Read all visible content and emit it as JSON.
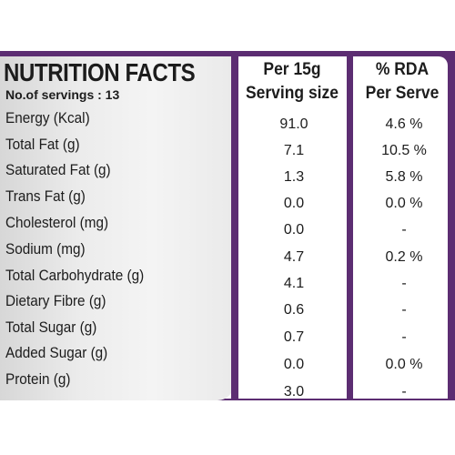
{
  "header": {
    "title": "NUTRITION FACTS",
    "servings": "No.of servings : 13",
    "col1_line1": "Per 15g",
    "col1_line2": "Serving size",
    "col2_line1": "% RDA",
    "col2_line2": "Per Serve"
  },
  "rows": [
    {
      "label": "Energy (Kcal)",
      "per15g": "91.0",
      "rda": "4.6 %"
    },
    {
      "label": "Total Fat (g)",
      "per15g": "7.1",
      "rda": "10.5 %"
    },
    {
      "label": "Saturated Fat (g)",
      "per15g": "1.3",
      "rda": "5.8 %"
    },
    {
      "label": "Trans Fat (g)",
      "per15g": "0.0",
      "rda": "0.0 %"
    },
    {
      "label": "Cholesterol (mg)",
      "per15g": "0.0",
      "rda": "-"
    },
    {
      "label": "Sodium (mg)",
      "per15g": "4.7",
      "rda": "0.2 %"
    },
    {
      "label": "Total Carbohydrate (g)",
      "per15g": "4.1",
      "rda": "-"
    },
    {
      "label": "Dietary Fibre (g)",
      "per15g": "0.6",
      "rda": "-"
    },
    {
      "label": "Total Sugar (g)",
      "per15g": "0.7",
      "rda": "-"
    },
    {
      "label": "Added Sugar (g)",
      "per15g": "0.0",
      "rda": "0.0 %"
    },
    {
      "label": "Protein (g)",
      "per15g": "3.0",
      "rda": "-"
    }
  ],
  "colors": {
    "accent": "#5c2d72",
    "text": "#1c1c1c"
  }
}
